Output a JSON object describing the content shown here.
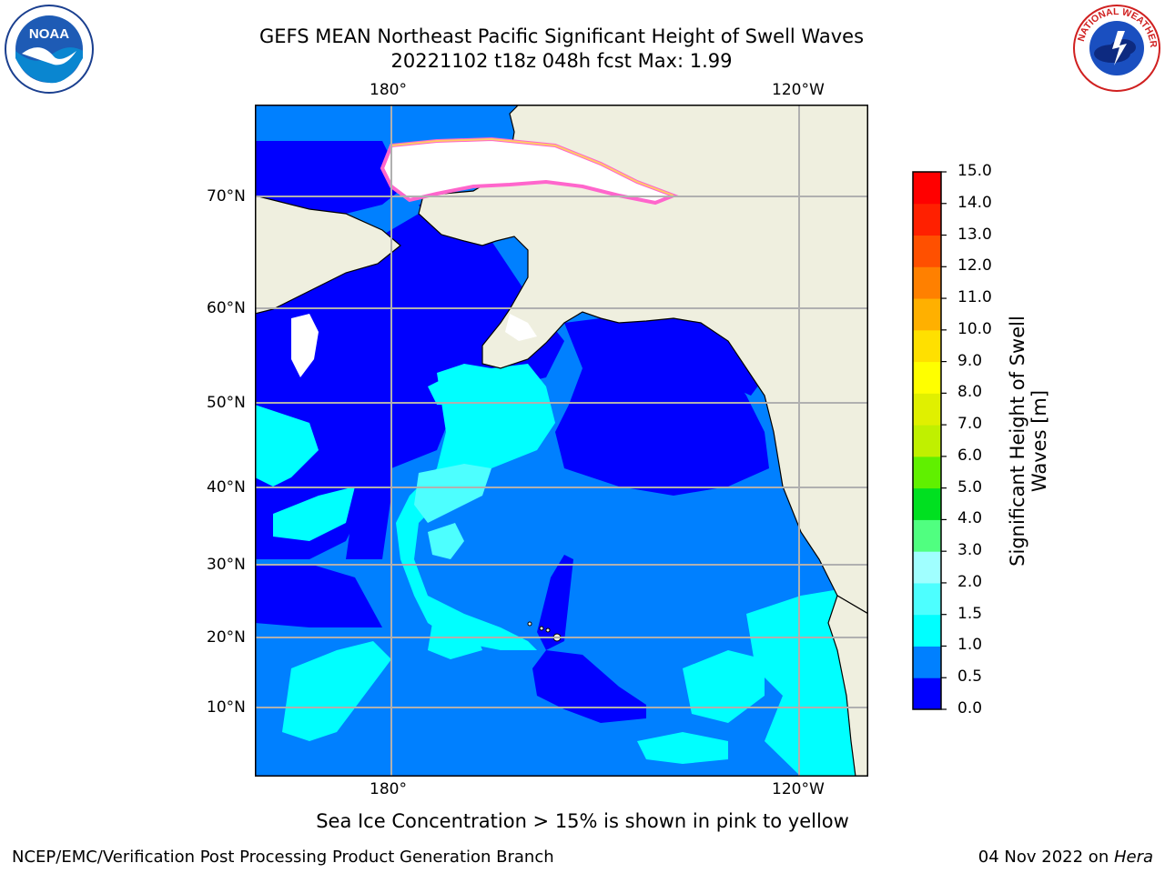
{
  "header": {
    "title_line1": "GEFS MEAN Northeast Pacific Significant Height of Swell Waves",
    "title_line2": "20221102 t18z 048h fcst   Max: 1.99"
  },
  "map": {
    "top_lon_labels": [
      "180°",
      "120°W"
    ],
    "bottom_lon_labels": [
      "180°",
      "120°W"
    ],
    "lat_labels": [
      "70°N",
      "60°N",
      "50°N",
      "40°N",
      "30°N",
      "20°N",
      "10°N"
    ],
    "land_color": "#efefdf",
    "grid_color": "#b0b0b0",
    "region": "Northeast Pacific"
  },
  "colorbar": {
    "title": "Significant Height of Swell Waves [m]",
    "tick_labels": [
      "15.0",
      "14.0",
      "13.0",
      "12.0",
      "11.0",
      "10.0",
      "9.0",
      "8.0",
      "7.0",
      "6.0",
      "5.0",
      "4.0",
      "3.0",
      "2.0",
      "1.5",
      "1.0",
      "0.5",
      "0.0"
    ],
    "levels": [
      0.0,
      0.5,
      1.0,
      1.5,
      2.0,
      3.0,
      4.0,
      5.0,
      6.0,
      7.0,
      8.0,
      9.0,
      10.0,
      11.0,
      12.0,
      13.0,
      14.0,
      15.0
    ],
    "colors": [
      "#0000ff",
      "#0080ff",
      "#00ffff",
      "#4dffff",
      "#a0ffff",
      "#50ff80",
      "#00e020",
      "#60f000",
      "#c0f000",
      "#e0f000",
      "#ffff00",
      "#ffe000",
      "#ffb000",
      "#ff8000",
      "#ff5000",
      "#ff2000",
      "#ff0000"
    ]
  },
  "ice_note": "Sea Ice Concentration > 15% is shown in pink to yellow",
  "footer": {
    "left": "NCEP/EMC/Verification Post Processing Product Generation Branch",
    "date": "04 Nov 2022 on ",
    "host": "Hera"
  },
  "logos": {
    "noaa_text": "NOAA",
    "nws_text": "NATIONAL WEATHER SERVICE"
  }
}
